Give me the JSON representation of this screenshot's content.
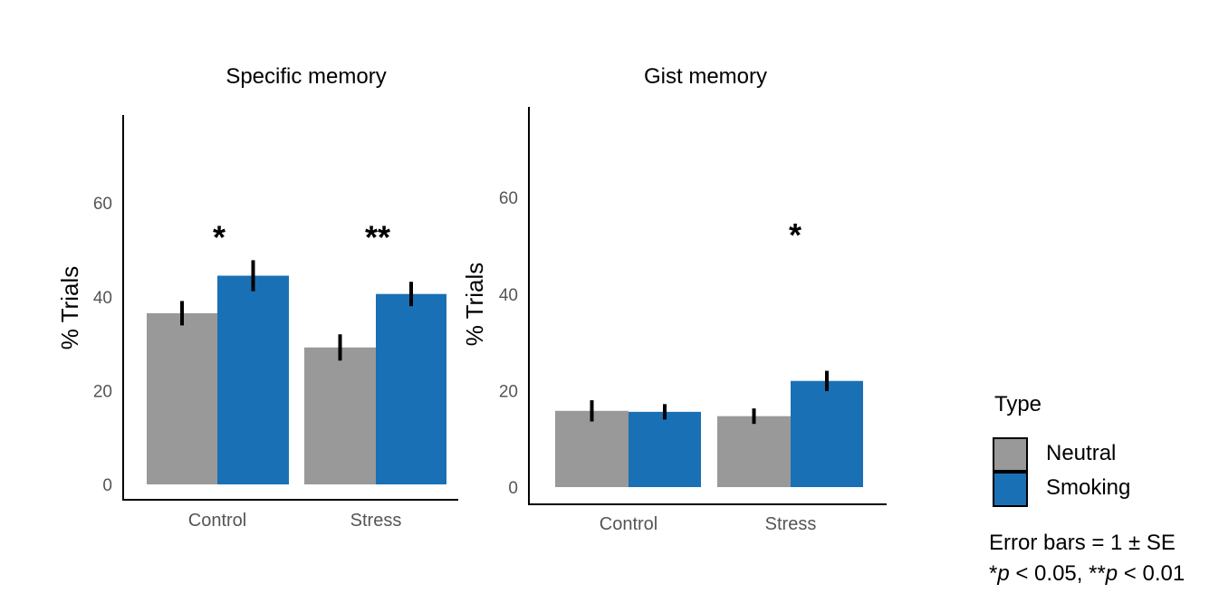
{
  "colors": {
    "neutral": "#999999",
    "smoking": "#1a70b5"
  },
  "legend": {
    "title": "Type",
    "items": [
      {
        "label": "Neutral",
        "color": "#999999"
      },
      {
        "label": "Smoking",
        "color": "#1a70b5"
      }
    ]
  },
  "notes": {
    "error_bars": "Error bars = 1 ± SE",
    "sig_p1": "p",
    "sig_t1": " < 0.05, **",
    "sig_p2": "p",
    "sig_t2": " < 0.01",
    "sig_star": "*"
  },
  "chart_data": [
    {
      "type": "bar",
      "title": "Specific memory",
      "ylabel": "% Trials",
      "xlabel": "",
      "categories": [
        "Control",
        "Stress"
      ],
      "ylim": [
        0,
        78
      ],
      "yticks": [
        0,
        20,
        40,
        60
      ],
      "series": [
        {
          "name": "Neutral",
          "values": [
            36.5,
            29.2
          ],
          "se": [
            2.6,
            2.8
          ]
        },
        {
          "name": "Smoking",
          "values": [
            44.5,
            40.6
          ],
          "se": [
            3.3,
            2.6
          ]
        }
      ],
      "significance": [
        "*",
        "**"
      ]
    },
    {
      "type": "bar",
      "title": "Gist memory",
      "ylabel": "% Trials",
      "xlabel": "",
      "categories": [
        "Control",
        "Stress"
      ],
      "ylim": [
        0,
        78
      ],
      "yticks": [
        0,
        20,
        40,
        60
      ],
      "series": [
        {
          "name": "Neutral",
          "values": [
            15.8,
            14.7
          ],
          "se": [
            2.2,
            1.6
          ]
        },
        {
          "name": "Smoking",
          "values": [
            15.6,
            22.0
          ],
          "se": [
            1.6,
            2.1
          ]
        }
      ],
      "significance": [
        "",
        "*"
      ]
    }
  ]
}
